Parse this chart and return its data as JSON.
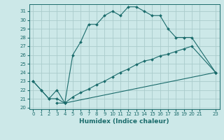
{
  "xlabel": "Humidex (Indice chaleur)",
  "xlim": [
    -0.5,
    23.5
  ],
  "ylim": [
    19.8,
    31.8
  ],
  "xticks": [
    0,
    1,
    2,
    3,
    4,
    5,
    6,
    7,
    8,
    9,
    10,
    11,
    12,
    13,
    14,
    15,
    16,
    17,
    18,
    19,
    20,
    21,
    23
  ],
  "yticks": [
    20,
    21,
    22,
    23,
    24,
    25,
    26,
    27,
    28,
    29,
    30,
    31
  ],
  "bg_color": "#cce8e8",
  "grid_color": "#aacccc",
  "line_color": "#1a6b6b",
  "line1_x": [
    0,
    1,
    2,
    3,
    4,
    5,
    6,
    7,
    8,
    9,
    10,
    11,
    12,
    13,
    14,
    15,
    16,
    17,
    18,
    19,
    20,
    23
  ],
  "line1_y": [
    23,
    22,
    21,
    22,
    20.5,
    26.0,
    27.5,
    29.5,
    29.5,
    30.5,
    31.0,
    30.5,
    31.5,
    31.5,
    31.0,
    30.5,
    30.5,
    29.0,
    28.0,
    28.0,
    28.0,
    24.0
  ],
  "line2_x": [
    0,
    1,
    2,
    3,
    4,
    5,
    6,
    7,
    8,
    9,
    10,
    11,
    12,
    13,
    14,
    15,
    16,
    17,
    18,
    19,
    20,
    23
  ],
  "line2_y": [
    23,
    22,
    21,
    21,
    20.5,
    21.2,
    21.7,
    22.1,
    22.6,
    23.0,
    23.5,
    24.0,
    24.4,
    24.9,
    25.3,
    25.5,
    25.9,
    26.1,
    26.4,
    26.7,
    27.0,
    24.0
  ],
  "line3_x": [
    3,
    4,
    23
  ],
  "line3_y": [
    20.5,
    20.5,
    24.0
  ]
}
